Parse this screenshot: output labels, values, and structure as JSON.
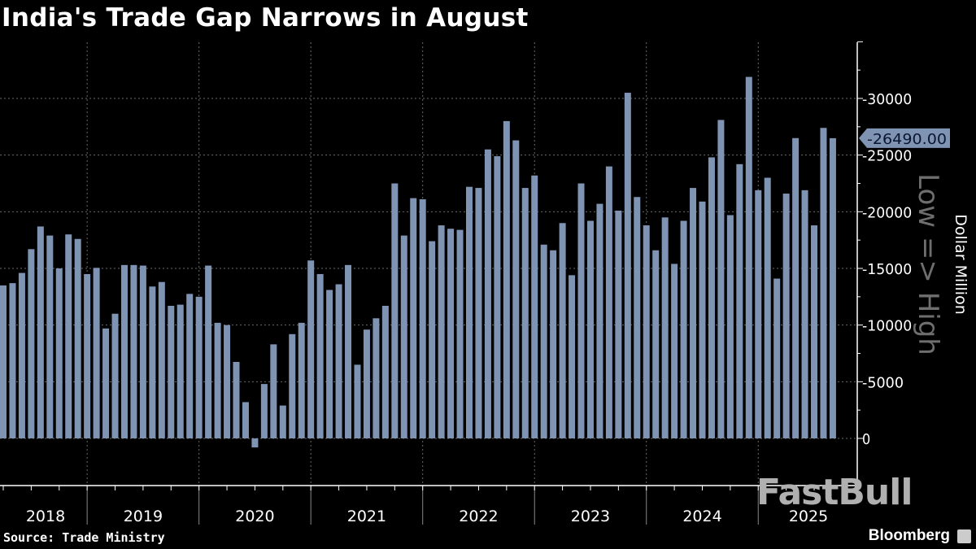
{
  "chart_data": {
    "type": "bar",
    "title": "India's Trade Gap Narrows in August",
    "ylabel": "Dollar Million",
    "y_axis_note": "Low => High",
    "y_axis_position": "right",
    "y_inverted_sign_display": true,
    "ylim": [
      -4000,
      35000
    ],
    "yticks": [
      0,
      5000,
      10000,
      15000,
      20000,
      25000,
      30000
    ],
    "ytick_labels": [
      "0",
      "-5000",
      "-10000",
      "-15000",
      "-20000",
      "-25000",
      "-30000"
    ],
    "grid": true,
    "bar_color": "#7f93b3",
    "x_start": "2018-03",
    "x_end": "2025-08",
    "year_labels": [
      "2018",
      "2019",
      "2020",
      "2021",
      "2022",
      "2023",
      "2024",
      "2025"
    ],
    "categories": [
      "2018-03",
      "2018-04",
      "2018-05",
      "2018-06",
      "2018-07",
      "2018-08",
      "2018-09",
      "2018-10",
      "2018-11",
      "2018-12",
      "2019-01",
      "2019-02",
      "2019-03",
      "2019-04",
      "2019-05",
      "2019-06",
      "2019-07",
      "2019-08",
      "2019-09",
      "2019-10",
      "2019-11",
      "2019-12",
      "2020-01",
      "2020-02",
      "2020-03",
      "2020-04",
      "2020-05",
      "2020-06",
      "2020-07",
      "2020-08",
      "2020-09",
      "2020-10",
      "2020-11",
      "2020-12",
      "2021-01",
      "2021-02",
      "2021-03",
      "2021-04",
      "2021-05",
      "2021-06",
      "2021-07",
      "2021-08",
      "2021-09",
      "2021-10",
      "2021-11",
      "2021-12",
      "2022-01",
      "2022-02",
      "2022-03",
      "2022-04",
      "2022-05",
      "2022-06",
      "2022-07",
      "2022-08",
      "2022-09",
      "2022-10",
      "2022-11",
      "2022-12",
      "2023-01",
      "2023-02",
      "2023-03",
      "2023-04",
      "2023-05",
      "2023-06",
      "2023-07",
      "2023-08",
      "2023-09",
      "2023-10",
      "2023-11",
      "2023-12",
      "2024-01",
      "2024-02",
      "2024-03",
      "2024-04",
      "2024-05",
      "2024-06",
      "2024-07",
      "2024-08",
      "2024-09",
      "2024-10",
      "2024-11",
      "2024-12",
      "2025-01",
      "2025-02",
      "2025-03",
      "2025-04",
      "2025-05",
      "2025-06",
      "2025-07",
      "2025-08"
    ],
    "values": [
      13500,
      13700,
      14600,
      16700,
      18700,
      17900,
      15000,
      18000,
      17600,
      14500,
      15050,
      9700,
      11000,
      15300,
      15300,
      15250,
      13400,
      13800,
      11700,
      11800,
      12750,
      12500,
      15250,
      10200,
      10000,
      6750,
      3200,
      -800,
      4800,
      8300,
      2900,
      9200,
      10200,
      15700,
      14500,
      13100,
      13600,
      15300,
      6500,
      9600,
      10600,
      11700,
      22500,
      17900,
      21200,
      21100,
      17400,
      18800,
      18500,
      18400,
      22200,
      22100,
      25500,
      24900,
      28000,
      26300,
      22100,
      23200,
      17100,
      16600,
      19000,
      14400,
      22500,
      19200,
      20700,
      24000,
      20100,
      30500,
      21300,
      18800,
      16600,
      19500,
      15400,
      19200,
      22100,
      20900,
      24800,
      28100,
      19700,
      24200,
      31900,
      21900,
      23000,
      14100,
      21600,
      26500,
      21900,
      18800,
      27400,
      26490
    ],
    "last_value_label": "-26490.00"
  },
  "footer": {
    "source": "Source: Trade Ministry",
    "brand": "Bloomberg",
    "watermark": "FastBull"
  }
}
